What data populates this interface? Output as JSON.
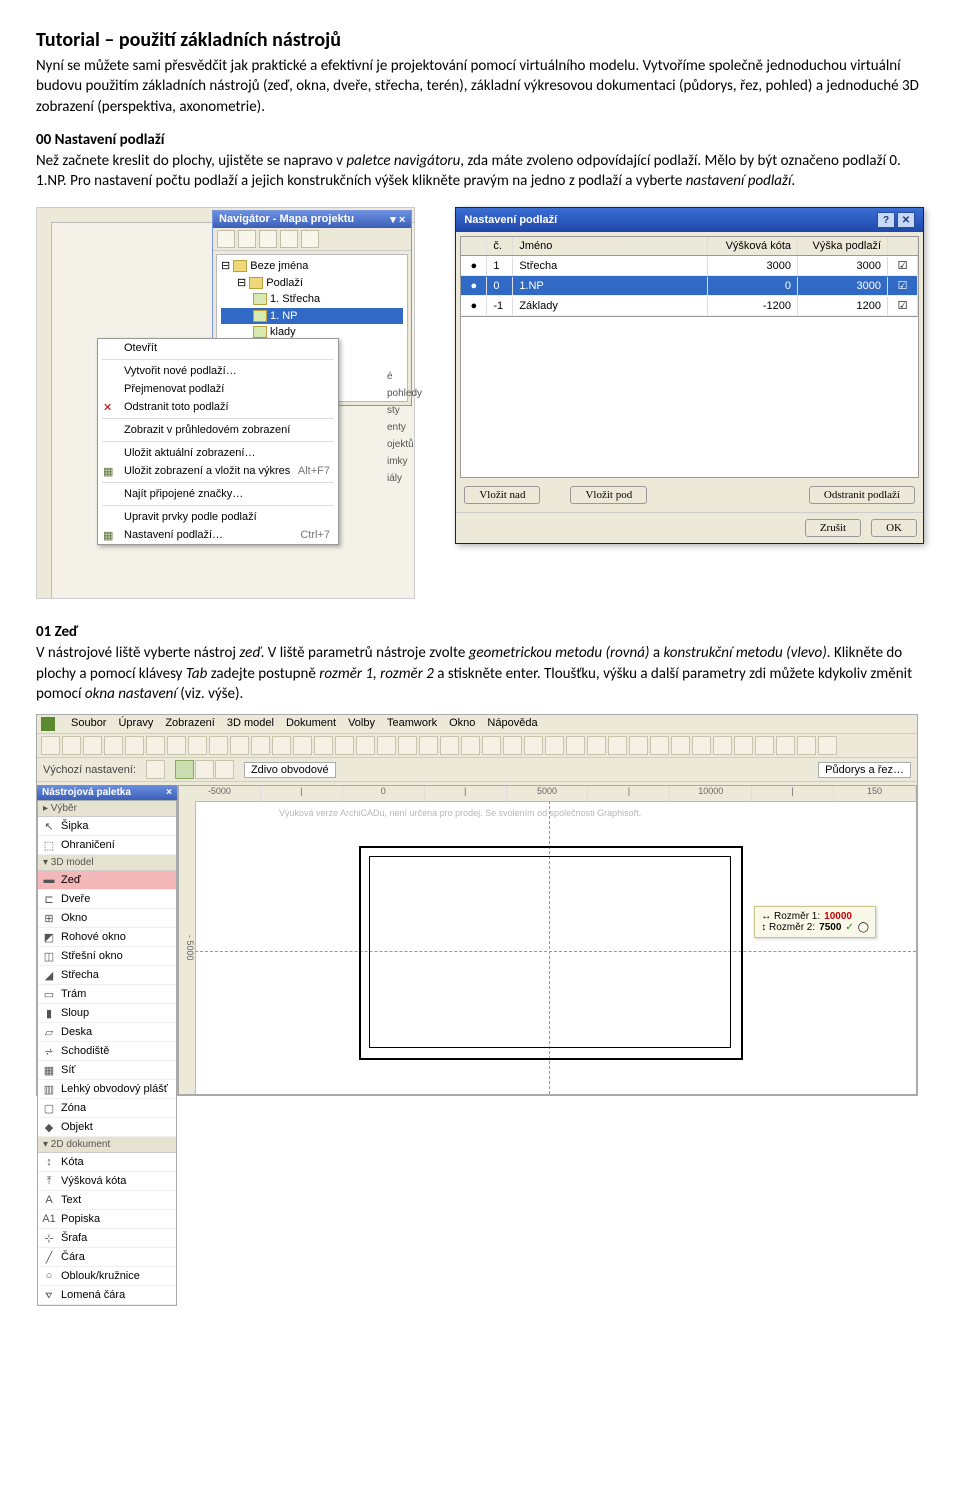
{
  "title": "Tutorial – použití základních nástrojů",
  "intro1": "Nyní se můžete sami přesvědčit jak praktické a efektivní je projektování pomocí virtuálního modelu. Vytvoříme společně jednoduchou virtuální budovu použitím základních nástrojů (zeď, okna, dveře, střecha, terén), základní výkresovou dokumentaci (půdorys, řez, pohled) a jednoduché 3D zobrazení (perspektiva, axonometrie).",
  "sec00_title": "00 Nastavení podlaží",
  "sec00_body_a": "Než začnete kreslit do plochy, ujistěte se napravo v ",
  "sec00_i1": "paletce navigátoru",
  "sec00_body_b": ", zda máte zvoleno odpovídající podlaží. Mělo by být označeno podlaží 0. 1.NP. Pro nastavení počtu podlaží a jejich konstrukčních výšek klikněte pravým na jedno z podlaží a vyberte ",
  "sec00_i2": "nastavení podlaží",
  "sec00_body_c": ".",
  "nav": {
    "title": "Navigátor - Mapa projektu",
    "close": "▾ ×",
    "tree": {
      "root": "Beze jména",
      "n1": "Podlaží",
      "n2": "1. Střecha",
      "n3": "1. NP",
      "n4": "klady"
    },
    "side": [
      "é pohledy",
      "sty",
      "enty",
      "ojektů",
      "imky",
      "iály"
    ]
  },
  "ctx": {
    "items": [
      {
        "t": "Otevřít"
      },
      {
        "sep": true
      },
      {
        "t": "Vytvořit nové podlaží…"
      },
      {
        "t": "Přejmenovat podlaží"
      },
      {
        "t": "Odstranit toto podlaží",
        "ic": "x"
      },
      {
        "sep": true
      },
      {
        "t": "Zobrazit v průhledovém zobrazení"
      },
      {
        "sep": true
      },
      {
        "t": "Uložit aktuální zobrazení…"
      },
      {
        "t": "Uložit zobrazení a vložit na výkres",
        "sc": "Alt+F7",
        "ic": "s"
      },
      {
        "sep": true
      },
      {
        "t": "Najít připojené značky…"
      },
      {
        "sep": true
      },
      {
        "t": "Upravit prvky podle podlaží"
      },
      {
        "t": "Nastavení podlaží…",
        "sc": "Ctrl+7",
        "ic": "s"
      }
    ]
  },
  "dlg": {
    "title": "Nastavení podlaží",
    "hd": {
      "num": "č.",
      "name": "Jméno",
      "kota": "Výšková kóta",
      "vys": "Výška podlaží"
    },
    "rows": [
      {
        "b": "●",
        "n": "1",
        "name": "Střecha",
        "k": "3000",
        "v": "3000",
        "c": "☑"
      },
      {
        "b": "●",
        "n": "0",
        "name": "1.NP",
        "k": "0",
        "v": "3000",
        "c": "☑",
        "sel": true
      },
      {
        "b": "●",
        "n": "-1",
        "name": "Základy",
        "k": "-1200",
        "v": "1200",
        "c": "☑"
      }
    ],
    "btn_above": "Vložit nad",
    "btn_below": "Vložit pod",
    "btn_del": "Odstranit podlaží",
    "btn_cancel": "Zrušit",
    "btn_ok": "OK"
  },
  "sec01_title": "01 Zeď",
  "sec01_a": "V nástrojové liště vyberte nástroj ",
  "sec01_i1": "zeď",
  "sec01_b": ". V liště parametrů nástroje zvolte ",
  "sec01_i2": "geometrickou metodu (rovná)",
  "sec01_c": " a ",
  "sec01_i3": "konstrukční metodu (vlevo)",
  "sec01_d": ". Klikněte do plochy a pomocí klávesy ",
  "sec01_i4": "Tab",
  "sec01_e": " zadejte postupně ",
  "sec01_i5": "rozměr 1, rozměr 2",
  "sec01_f": "  a stiskněte enter. Tloušťku, výšku a další parametry zdi můžete kdykoliv změnit pomocí ",
  "sec01_i6": "okna nastavení",
  "sec01_g": " (viz. výše).",
  "app": {
    "menus": [
      "Soubor",
      "Úpravy",
      "Zobrazení",
      "3D model",
      "Dokument",
      "Volby",
      "Teamwork",
      "Okno",
      "Nápověda"
    ],
    "info_lab": "Výchozí nastavení:",
    "info_wall": "Zdivo obvodové",
    "info_plan": "Půdorys a řez…",
    "ruler": [
      " -5000",
      "|",
      "0",
      "|",
      "5000",
      "|",
      "10000",
      "|",
      "150"
    ],
    "rulerV": "- 5000",
    "wm": "Výuková verze ArchiCADu, není určena pro prodej. Se svolením od společnosti Graphisoft.",
    "palette_title": "Nástrojová paletka",
    "grp1": "▸ Výběr",
    "tools1": [
      [
        "↖",
        "Šipka"
      ],
      [
        "⬚",
        "Ohraničení"
      ]
    ],
    "grp2": "▾ 3D model",
    "tools2": [
      [
        "▬",
        "Zeď"
      ],
      [
        "⊏",
        "Dveře"
      ],
      [
        "⊞",
        "Okno"
      ],
      [
        "◩",
        "Rohové okno"
      ],
      [
        "◫",
        "Střešní okno"
      ],
      [
        "◢",
        "Střecha"
      ],
      [
        "▭",
        "Trám"
      ],
      [
        "▮",
        "Sloup"
      ],
      [
        "▱",
        "Deska"
      ],
      [
        "⩫",
        "Schodiště"
      ],
      [
        "▦",
        "Síť"
      ],
      [
        "▥",
        "Lehký obvodový plášť"
      ],
      [
        "▢",
        "Zóna"
      ],
      [
        "◆",
        "Objekt"
      ]
    ],
    "grp3": "▾ 2D dokument",
    "tools3": [
      [
        "↕",
        "Kóta"
      ],
      [
        "⤒",
        "Výšková kóta"
      ],
      [
        "A",
        "Text"
      ],
      [
        "A1",
        "Popiska"
      ],
      [
        "⊹",
        "Šrafa"
      ],
      [
        "╱",
        "Čára"
      ],
      [
        "○",
        "Oblouk/kružnice"
      ],
      [
        "⦡",
        "Lomená čára"
      ]
    ],
    "tracker": {
      "l1": "↔ Rozměr 1:",
      "v1": "10000",
      "l2": "↕ Rozměr 2:",
      "v2": "7500",
      "ok": "✓",
      "ex": "◯"
    }
  }
}
